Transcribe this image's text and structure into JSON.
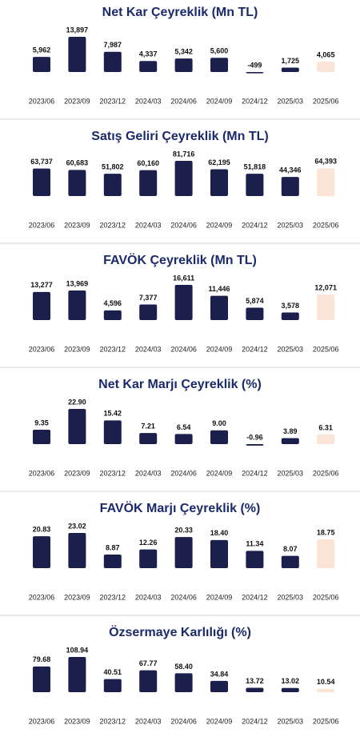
{
  "chart_data": [
    {
      "type": "bar",
      "title": "Net Kar Çeyreklik (Mn TL)",
      "categories": [
        "2023/06",
        "2023/09",
        "2023/12",
        "2024/03",
        "2024/06",
        "2024/09",
        "2024/12",
        "2025/03",
        "2025/06"
      ],
      "values": [
        5962,
        13897,
        7987,
        4337,
        5342,
        5600,
        -499,
        1725,
        4065
      ],
      "value_labels": [
        "5,962",
        "13,897",
        "7,987",
        "4,337",
        "5,342",
        "5,600",
        "-499",
        "1,725",
        "4,065"
      ],
      "colors": [
        "#1b1f4b",
        "#1b1f4b",
        "#1b1f4b",
        "#1b1f4b",
        "#1b1f4b",
        "#1b1f4b",
        "#1b1f4b",
        "#1b1f4b",
        "#fbe3d6"
      ]
    },
    {
      "type": "bar",
      "title": "Satış Geliri Çeyreklik (Mn TL)",
      "categories": [
        "2023/06",
        "2023/09",
        "2023/12",
        "2024/03",
        "2024/06",
        "2024/09",
        "2024/12",
        "2025/03",
        "2025/06"
      ],
      "values": [
        63737,
        60683,
        51802,
        60160,
        81716,
        62195,
        51818,
        44346,
        64393
      ],
      "value_labels": [
        "63,737",
        "60,683",
        "51,802",
        "60,160",
        "81,716",
        "62,195",
        "51,818",
        "44,346",
        "64,393"
      ],
      "colors": [
        "#1b1f4b",
        "#1b1f4b",
        "#1b1f4b",
        "#1b1f4b",
        "#1b1f4b",
        "#1b1f4b",
        "#1b1f4b",
        "#1b1f4b",
        "#fbe3d6"
      ]
    },
    {
      "type": "bar",
      "title": "FAVÖK Çeyreklik (Mn TL)",
      "categories": [
        "2023/06",
        "2023/09",
        "2023/12",
        "2024/03",
        "2024/06",
        "2024/09",
        "2024/12",
        "2025/03",
        "2025/06"
      ],
      "values": [
        13277,
        13969,
        4596,
        7377,
        16611,
        11446,
        5874,
        3578,
        12071
      ],
      "value_labels": [
        "13,277",
        "13,969",
        "4,596",
        "7,377",
        "16,611",
        "11,446",
        "5,874",
        "3,578",
        "12,071"
      ],
      "colors": [
        "#1b1f4b",
        "#1b1f4b",
        "#1b1f4b",
        "#1b1f4b",
        "#1b1f4b",
        "#1b1f4b",
        "#1b1f4b",
        "#1b1f4b",
        "#fbe3d6"
      ]
    },
    {
      "type": "bar",
      "title": "Net Kar Marjı Çeyreklik (%)",
      "categories": [
        "2023/06",
        "2023/09",
        "2023/12",
        "2024/03",
        "2024/06",
        "2024/09",
        "2024/12",
        "2025/03",
        "2025/06"
      ],
      "values": [
        9.35,
        22.9,
        15.42,
        7.21,
        6.54,
        9,
        -0.96,
        3.89,
        6.31
      ],
      "value_labels": [
        "9.35",
        "22.90",
        "15.42",
        "7.21",
        "6.54",
        "9.00",
        "-0.96",
        "3.89",
        "6.31"
      ],
      "colors": [
        "#1b1f4b",
        "#1b1f4b",
        "#1b1f4b",
        "#1b1f4b",
        "#1b1f4b",
        "#1b1f4b",
        "#1b1f4b",
        "#1b1f4b",
        "#fbe3d6"
      ]
    },
    {
      "type": "bar",
      "title": "FAVÖK Marjı Çeyreklik (%)",
      "categories": [
        "2023/06",
        "2023/09",
        "2023/12",
        "2024/03",
        "2024/06",
        "2024/09",
        "2024/12",
        "2025/03",
        "2025/06"
      ],
      "values": [
        20.83,
        23.02,
        8.87,
        12.26,
        20.33,
        18.4,
        11.34,
        8.07,
        18.75
      ],
      "value_labels": [
        "20.83",
        "23.02",
        "8.87",
        "12.26",
        "20.33",
        "18.40",
        "11.34",
        "8.07",
        "18.75"
      ],
      "colors": [
        "#1b1f4b",
        "#1b1f4b",
        "#1b1f4b",
        "#1b1f4b",
        "#1b1f4b",
        "#1b1f4b",
        "#1b1f4b",
        "#1b1f4b",
        "#fbe3d6"
      ]
    },
    {
      "type": "bar",
      "title": "Özsermaye Karlılığı (%)",
      "categories": [
        "2023/06",
        "2023/09",
        "2023/12",
        "2024/03",
        "2024/06",
        "2024/09",
        "2024/12",
        "2025/03",
        "2025/06"
      ],
      "values": [
        79.68,
        108.94,
        40.51,
        67.77,
        58.4,
        34.84,
        13.72,
        13.02,
        10.54
      ],
      "value_labels": [
        "79.68",
        "108.94",
        "40.51",
        "67.77",
        "58.40",
        "34.84",
        "13.72",
        "13.02",
        "10.54"
      ],
      "colors": [
        "#1b1f4b",
        "#1b1f4b",
        "#1b1f4b",
        "#1b1f4b",
        "#1b1f4b",
        "#1b1f4b",
        "#1b1f4b",
        "#1b1f4b",
        "#fbe3d6"
      ]
    }
  ]
}
